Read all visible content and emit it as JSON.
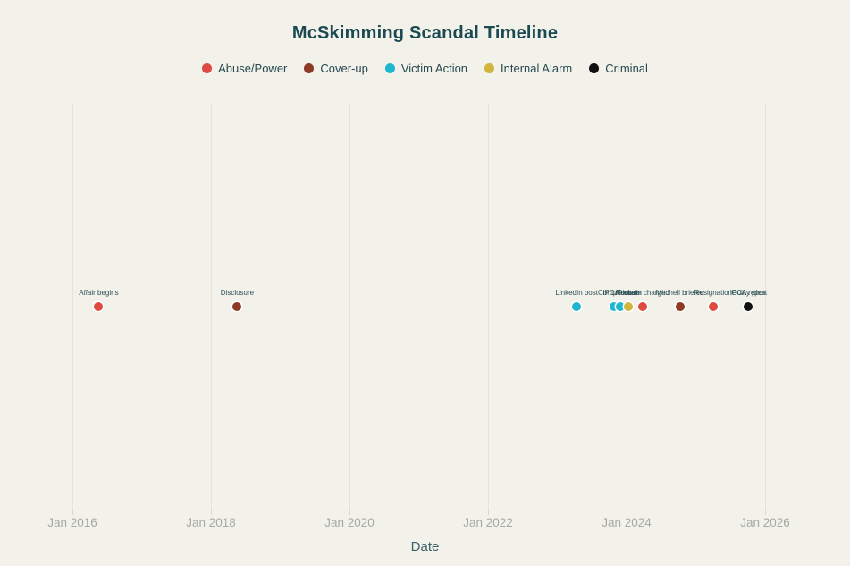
{
  "chart_data": {
    "type": "scatter",
    "title": "McSkimming Scandal Timeline",
    "xlabel": "Date",
    "grid": true,
    "legend_position": "top-center",
    "x_range_years": [
      2015.5,
      2026.3
    ],
    "x_ticks": [
      {
        "label": "Jan 2016",
        "year": 2016
      },
      {
        "label": "Jan 2018",
        "year": 2018
      },
      {
        "label": "Jan 2020",
        "year": 2020
      },
      {
        "label": "Jan 2022",
        "year": 2022
      },
      {
        "label": "Jan 2024",
        "year": 2024
      },
      {
        "label": "Jan 2026",
        "year": 2026
      }
    ],
    "categories": [
      {
        "name": "Abuse/Power",
        "color": "#df4a43"
      },
      {
        "name": "Cover-up",
        "color": "#8e3a26"
      },
      {
        "name": "Victim Action",
        "color": "#1fb7cf"
      },
      {
        "name": "Internal Alarm",
        "color": "#d2b53d"
      },
      {
        "name": "Criminal",
        "color": "#111111"
      }
    ],
    "events": [
      {
        "label": "Affair begins",
        "date": "May 2016",
        "year": 2016.38,
        "category": "Abuse/Power"
      },
      {
        "label": "Disclosure",
        "date": "May 2018",
        "year": 2018.38,
        "category": "Cover-up"
      },
      {
        "label": "LinkedIn post",
        "date": "Apr 2023",
        "year": 2023.28,
        "category": "Victim Action"
      },
      {
        "label": "Complaint",
        "date": "Oct 2023",
        "year": 2023.82,
        "category": "Victim Action"
      },
      {
        "label": "IPCA email",
        "date": "Dec 2023",
        "year": 2023.91,
        "category": "Victim Action"
      },
      {
        "label": "IT alarm",
        "date": "Jan 2024",
        "year": 2024.03,
        "category": "Internal Alarm"
      },
      {
        "label": "Accuser charged",
        "date": "Mar 2024",
        "year": 2024.23,
        "category": "Abuse/Power"
      },
      {
        "label": "Mitchell briefed",
        "date": "Oct 2024",
        "year": 2024.77,
        "category": "Cover-up"
      },
      {
        "label": "Resignation",
        "date": "Apr 2025",
        "year": 2025.25,
        "category": "Abuse/Power"
      },
      {
        "label": "IPCA report",
        "date": "Oct 2025",
        "year": 2025.76,
        "category": "Internal Alarm"
      },
      {
        "label": "Guilty plea",
        "date": "Oct 2025",
        "year": 2025.76,
        "category": "Criminal"
      }
    ],
    "style": {
      "background": "#f2f1ea",
      "title_color": "#1c4a52",
      "legend_text_color": "#27494f",
      "grid_color": "#e4e3dc",
      "tick_label_color": "#a7a9a4",
      "event_label_color": "#2e5257",
      "xaxis_title_color": "#3a6168"
    }
  }
}
